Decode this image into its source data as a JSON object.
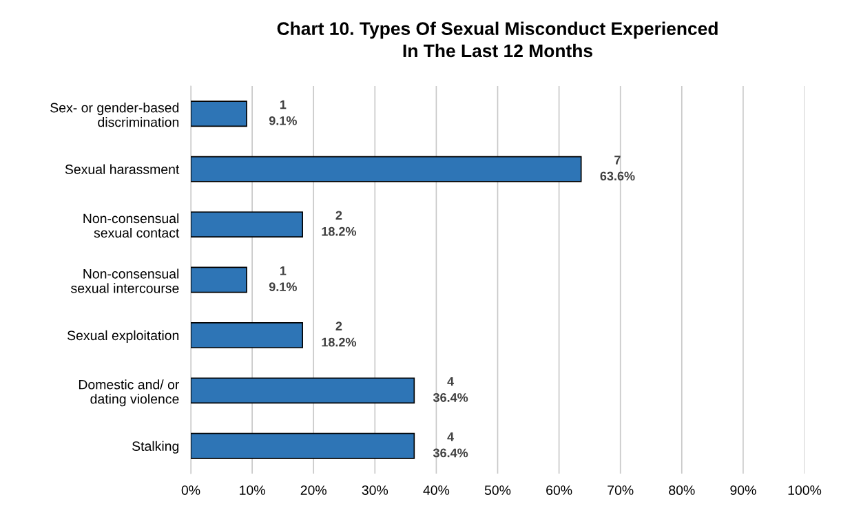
{
  "chart_data": {
    "type": "bar",
    "orientation": "horizontal",
    "title": "Chart 10. Types Of Sexual Misconduct Experienced\nIn The Last 12 Months",
    "categories": [
      "Sex- or gender-based\ndiscrimination",
      "Sexual harassment",
      "Non-consensual\nsexual contact",
      "Non-consensual\nsexual intercourse",
      "Sexual exploitation",
      "Domestic and/ or\ndating violence",
      "Stalking"
    ],
    "values": [
      9.1,
      63.6,
      18.2,
      9.1,
      18.2,
      36.4,
      36.4
    ],
    "value_labels": [
      "1\n9.1%",
      "7\n63.6%",
      "2\n18.2%",
      "1\n9.1%",
      "2\n18.2%",
      "4\n36.4%",
      "4\n36.4%"
    ],
    "color": "#2e75b6",
    "xlim": [
      0,
      100
    ],
    "xticks": [
      {
        "value": 0,
        "label": "0%"
      },
      {
        "value": 10,
        "label": "10%"
      },
      {
        "value": 20,
        "label": "20%"
      },
      {
        "value": 30,
        "label": "30%"
      },
      {
        "value": 40,
        "label": "40%"
      },
      {
        "value": 50,
        "label": "50%"
      },
      {
        "value": 60,
        "label": "60%"
      },
      {
        "value": 70,
        "label": "70%"
      },
      {
        "value": 80,
        "label": "80%"
      },
      {
        "value": 90,
        "label": "90%"
      },
      {
        "value": 100,
        "label": "100%"
      }
    ],
    "grid": "x",
    "legend": false
  }
}
